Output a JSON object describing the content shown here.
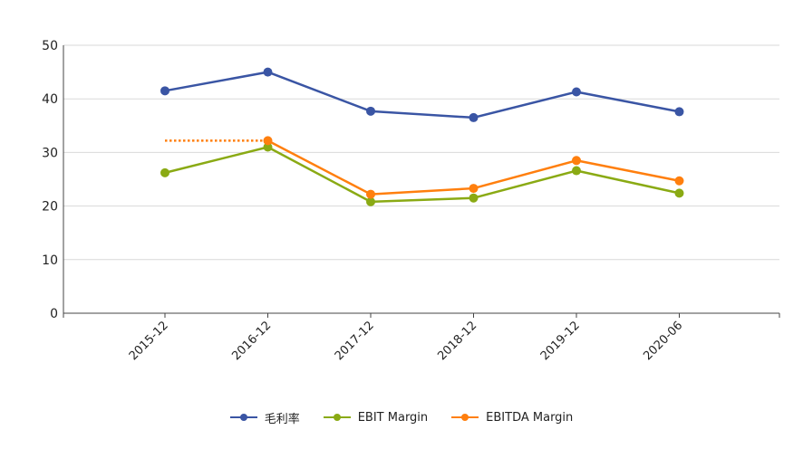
{
  "chart_data": {
    "type": "line",
    "title": "",
    "xlabel": "",
    "ylabel": "",
    "categories": [
      "2015-12",
      "2016-12",
      "2017-12",
      "2018-12",
      "2019-12",
      "2020-06"
    ],
    "ylim": [
      0,
      50
    ],
    "yticks": [
      0,
      10,
      20,
      30,
      40,
      50
    ],
    "grid": true,
    "legend_position": "bottom",
    "series": [
      {
        "name": "毛利率",
        "color": "#3a55a4",
        "values": [
          41.5,
          45.0,
          37.7,
          36.5,
          41.3,
          37.6
        ]
      },
      {
        "name": "EBIT Margin",
        "color": "#8aaa14",
        "values": [
          26.2,
          31.0,
          20.8,
          21.5,
          26.6,
          22.4
        ]
      },
      {
        "name": "EBITDA Margin",
        "color": "#ff7f0e",
        "values": [
          null,
          32.2,
          22.2,
          23.3,
          28.5,
          24.7
        ]
      }
    ],
    "annotations": [
      {
        "type": "dotted-reference-line",
        "series": "EBITDA Margin",
        "value": 32.2,
        "from": "2015-12",
        "to": "2016-12",
        "color": "#ff7f0e"
      }
    ]
  }
}
